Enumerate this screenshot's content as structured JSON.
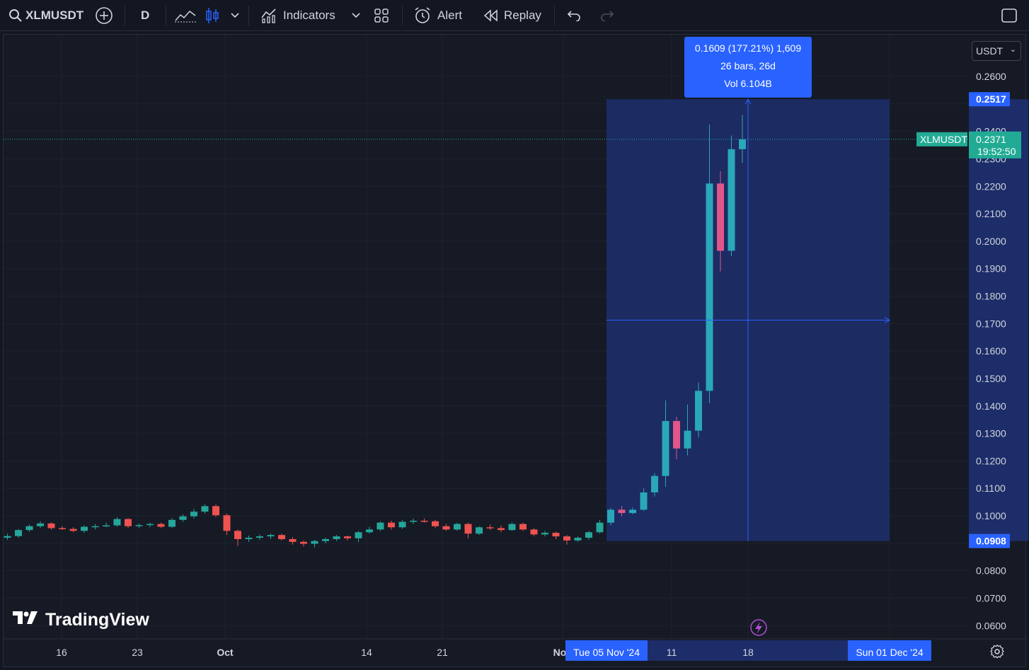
{
  "toolbar": {
    "symbol": "XLMUSDT",
    "interval": "D",
    "indicators_label": "Indicators",
    "alert_label": "Alert",
    "replay_label": "Replay",
    "icons": [
      "search-icon",
      "add-symbol-icon",
      "bar-style-icon",
      "candle-style-icon",
      "chevron-down-icon",
      "indicators-icon",
      "layouts-icon",
      "alert-icon",
      "replay-icon",
      "undo-icon",
      "redo-icon",
      "fullscreen-icon"
    ]
  },
  "currency_select": {
    "value": "USDT"
  },
  "price_axis": {
    "ticks": [
      "0.2600",
      "0.2400",
      "0.2300",
      "0.2200",
      "0.2100",
      "0.2000",
      "0.1900",
      "0.1800",
      "0.1700",
      "0.1600",
      "0.1500",
      "0.1400",
      "0.1300",
      "0.1200",
      "0.1100",
      "0.1000",
      "0.0800",
      "0.0700",
      "0.0600"
    ],
    "range_top_label": "0.2517",
    "range_bottom_label": "0.0908",
    "current_price_label": "0.2371",
    "countdown_label": "19:52:50",
    "symbol_tag": "XLMUSDT"
  },
  "time_axis": {
    "ticks": [
      "16",
      "23",
      "Oct",
      "14",
      "21",
      "No",
      "11",
      "18"
    ],
    "range_start_label": "Tue 05 Nov '24",
    "range_end_label": "Sun 01 Dec '24"
  },
  "measure_tooltip": {
    "line1": "0.1609 (177.21%) 1,609",
    "line2": "26 bars, 26d",
    "line3": "Vol 6.104B"
  },
  "branding": {
    "logo_text": "TradingView"
  },
  "colors": {
    "up": "#26a69a",
    "down": "#ef5350",
    "up_in_range": "#2aa7b8",
    "down_in_range": "#e0568a",
    "measure_fill": "#1d2d69",
    "accent_blue": "#2962ff",
    "price_tag": "#22ab94"
  },
  "chart_data": {
    "type": "candlestick",
    "symbol": "XLMUSDT",
    "interval": "D",
    "measure_range": {
      "from_price": 0.0908,
      "to_price": 0.2517,
      "change": 0.1609,
      "change_pct": 177.21,
      "bars": 26,
      "days": 26,
      "volume": "6.104B"
    },
    "current_price": 0.2371,
    "candles": [
      [
        0.092,
        0.0935,
        0.0912,
        0.0926
      ],
      [
        0.0926,
        0.0952,
        0.092,
        0.0948
      ],
      [
        0.0948,
        0.0968,
        0.0942,
        0.0962
      ],
      [
        0.0962,
        0.098,
        0.0955,
        0.0972
      ],
      [
        0.0972,
        0.0976,
        0.095,
        0.0955
      ],
      [
        0.0955,
        0.0962,
        0.0948,
        0.0952
      ],
      [
        0.0952,
        0.0958,
        0.094,
        0.0945
      ],
      [
        0.0945,
        0.0965,
        0.0938,
        0.096
      ],
      [
        0.096,
        0.097,
        0.095,
        0.0962
      ],
      [
        0.0962,
        0.0975,
        0.0958,
        0.0965
      ],
      [
        0.0965,
        0.0995,
        0.096,
        0.0988
      ],
      [
        0.0988,
        0.0992,
        0.0955,
        0.0962
      ],
      [
        0.0962,
        0.0972,
        0.0955,
        0.0966
      ],
      [
        0.0966,
        0.0975,
        0.0958,
        0.097
      ],
      [
        0.097,
        0.0975,
        0.0955,
        0.096
      ],
      [
        0.096,
        0.0992,
        0.0955,
        0.0985
      ],
      [
        0.0985,
        0.1005,
        0.0978,
        0.0998
      ],
      [
        0.0998,
        0.1025,
        0.099,
        0.1015
      ],
      [
        0.1015,
        0.1042,
        0.1008,
        0.1035
      ],
      [
        0.1035,
        0.1042,
        0.0995,
        0.1002
      ],
      [
        0.1002,
        0.1008,
        0.093,
        0.0945
      ],
      [
        0.0945,
        0.095,
        0.089,
        0.0915
      ],
      [
        0.0915,
        0.0928,
        0.0905,
        0.092
      ],
      [
        0.092,
        0.0932,
        0.0912,
        0.0925
      ],
      [
        0.0925,
        0.0935,
        0.0915,
        0.093
      ],
      [
        0.093,
        0.0935,
        0.091,
        0.0915
      ],
      [
        0.0915,
        0.0922,
        0.0895,
        0.0905
      ],
      [
        0.0905,
        0.091,
        0.0888,
        0.0898
      ],
      [
        0.0898,
        0.0912,
        0.0885,
        0.0908
      ],
      [
        0.0908,
        0.092,
        0.09,
        0.0915
      ],
      [
        0.0915,
        0.093,
        0.0908,
        0.0925
      ],
      [
        0.0925,
        0.0928,
        0.091,
        0.0918
      ],
      [
        0.0918,
        0.0945,
        0.0905,
        0.094
      ],
      [
        0.094,
        0.096,
        0.0935,
        0.095
      ],
      [
        0.095,
        0.098,
        0.0945,
        0.0975
      ],
      [
        0.0975,
        0.0982,
        0.095,
        0.0958
      ],
      [
        0.0958,
        0.0985,
        0.0952,
        0.0978
      ],
      [
        0.0978,
        0.099,
        0.097,
        0.0982
      ],
      [
        0.0982,
        0.099,
        0.0975,
        0.098
      ],
      [
        0.098,
        0.0985,
        0.0955,
        0.0962
      ],
      [
        0.0962,
        0.097,
        0.0945,
        0.095
      ],
      [
        0.095,
        0.0975,
        0.0945,
        0.097
      ],
      [
        0.097,
        0.0975,
        0.0918,
        0.0935
      ],
      [
        0.0935,
        0.0962,
        0.093,
        0.0958
      ],
      [
        0.0958,
        0.0968,
        0.0948,
        0.0955
      ],
      [
        0.0955,
        0.0965,
        0.094,
        0.0948
      ],
      [
        0.0948,
        0.0975,
        0.0945,
        0.097
      ],
      [
        0.097,
        0.0975,
        0.0945,
        0.095
      ],
      [
        0.095,
        0.0955,
        0.0925,
        0.0932
      ],
      [
        0.0932,
        0.0945,
        0.0925,
        0.0938
      ],
      [
        0.0938,
        0.0942,
        0.0915,
        0.0925
      ],
      [
        0.0925,
        0.093,
        0.0895,
        0.091
      ],
      [
        0.091,
        0.0925,
        0.0905,
        0.092
      ],
      [
        0.092,
        0.0945,
        0.0912,
        0.094
      ],
      [
        0.094,
        0.0985,
        0.0935,
        0.0975
      ],
      [
        0.0975,
        0.1028,
        0.0965,
        0.1022
      ],
      [
        0.1022,
        0.1035,
        0.0998,
        0.101
      ],
      [
        0.101,
        0.103,
        0.1005,
        0.1022
      ],
      [
        0.1022,
        0.11,
        0.1018,
        0.1085
      ],
      [
        0.1085,
        0.1155,
        0.107,
        0.1145
      ],
      [
        0.1145,
        0.142,
        0.1105,
        0.1345
      ],
      [
        0.1345,
        0.136,
        0.1205,
        0.1245
      ],
      [
        0.1245,
        0.1405,
        0.122,
        0.131
      ],
      [
        0.131,
        0.1485,
        0.1285,
        0.1455
      ],
      [
        0.1455,
        0.2425,
        0.141,
        0.221
      ],
      [
        0.221,
        0.2255,
        0.189,
        0.1965
      ],
      [
        0.1965,
        0.2385,
        0.1945,
        0.2335
      ],
      [
        0.2335,
        0.246,
        0.2285,
        0.2371
      ]
    ]
  }
}
